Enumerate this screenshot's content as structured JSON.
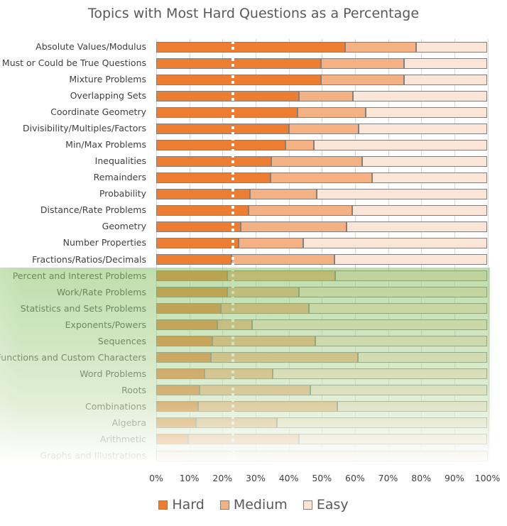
{
  "chart_data": {
    "type": "bar",
    "orientation": "horizontal",
    "stacked": "100%",
    "title": "Topics with Most Hard Questions as a Percentage",
    "categories": [
      "Absolute Values/Modulus",
      "Must or Could be True Questions",
      "Mixture Problems",
      "Overlapping Sets",
      "Coordinate Geometry",
      "Divisibility/Multiples/Factors",
      "Min/Max Problems",
      "Inequalities",
      "Remainders",
      "Probability",
      "Distance/Rate Problems",
      "Geometry",
      "Number Properties",
      "Fractions/Ratios/Decimals",
      "Percent and Interest Problems",
      "Work/Rate Problems",
      "Statistics and Sets Problems",
      "Exponents/Powers",
      "Sequences",
      "Functions and Custom Characters",
      "Word Problems",
      "Roots",
      "Combinations",
      "Algebra",
      "Arithmetic",
      "Graphs and Illustrations"
    ],
    "series": [
      {
        "name": "Hard",
        "color": "#ED7D31",
        "values": [
          57.1,
          49.8,
          49.8,
          43.1,
          42.7,
          40.1,
          39.1,
          34.8,
          34.6,
          28.4,
          27.9,
          25.6,
          24.9,
          22.8,
          21.5,
          21.5,
          19.4,
          18.5,
          17.0,
          16.6,
          14.6,
          13.1,
          12.7,
          12.1,
          9.7,
          0
        ]
      },
      {
        "name": "Medium",
        "color": "#F4B183",
        "values": [
          21.4,
          25.1,
          25.1,
          16.3,
          20.6,
          21.0,
          8.5,
          27.4,
          30.6,
          20.1,
          31.3,
          31.9,
          19.5,
          31.1,
          32.6,
          21.6,
          26.7,
          10.5,
          31.1,
          44.3,
          20.6,
          33.5,
          42.0,
          24.4,
          33.4,
          0
        ]
      },
      {
        "name": "Easy",
        "color": "#FBE5D6",
        "values": [
          21.5,
          25.1,
          25.1,
          40.6,
          36.7,
          38.9,
          52.4,
          37.8,
          34.8,
          51.5,
          40.8,
          42.5,
          55.6,
          46.1,
          45.9,
          56.9,
          53.9,
          71.0,
          51.9,
          39.1,
          64.8,
          53.4,
          45.3,
          63.5,
          56.9,
          100
        ]
      }
    ],
    "xlim": [
      0,
      100
    ],
    "xticks": [
      "0%",
      "10%",
      "20%",
      "30%",
      "40%",
      "50%",
      "60%",
      "70%",
      "80%",
      "90%",
      "100%"
    ],
    "reference_line": {
      "value": 23.1,
      "style": "white dashed"
    },
    "grid": true,
    "legend": "bottom"
  }
}
